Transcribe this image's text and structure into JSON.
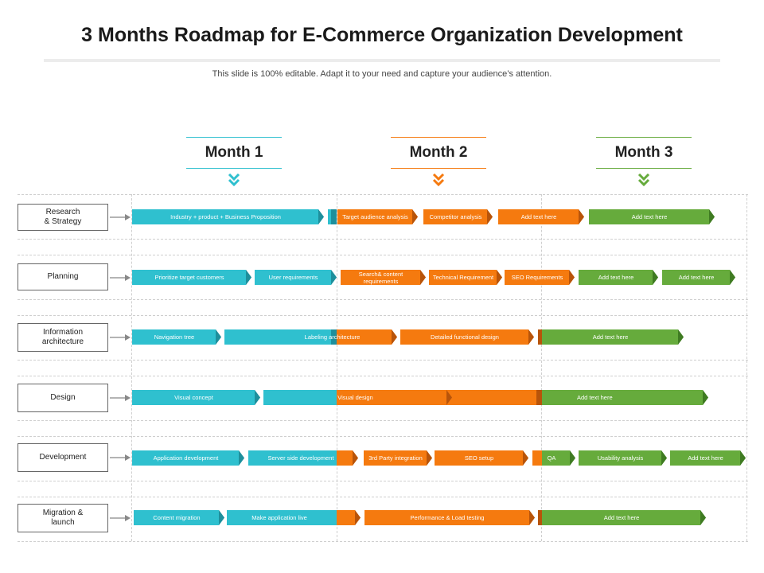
{
  "title": "3 Months Roadmap for E-Commerce Organization Development",
  "subtitle": "This slide is 100% editable. Adapt it to your need and capture your audience’s attention.",
  "months": [
    "Month 1",
    "Month 2",
    "Month 3"
  ],
  "colors": {
    "month1": "#2fc0cf",
    "month2": "#f57a0f",
    "month3": "#66ab3c"
  },
  "rows": [
    {
      "label": "Research\n& Strategy",
      "tasks": [
        "Industry + product + Business Proposition",
        "Target audience analysis",
        "Competitor analysis",
        "Add text here",
        "Add text here"
      ]
    },
    {
      "label": "Planning",
      "tasks": [
        "Prioritize target customers",
        "User requirements",
        "Search& content requirements",
        "Technical Requirement",
        "SEO Requirements",
        "Add text here",
        "Add text here"
      ]
    },
    {
      "label": "Information\narchitecture",
      "tasks": [
        "Navigation tree",
        "Labeling architecture",
        "Detailed functional design",
        "Add text here"
      ]
    },
    {
      "label": "Design",
      "tasks": [
        "Visual concept",
        "Visual design",
        "Add text here"
      ]
    },
    {
      "label": "Development",
      "tasks": [
        "Application development",
        "Server side development",
        "3rd Party integration",
        "SEO setup",
        "QA",
        "Usability analysis",
        "Add text here"
      ]
    },
    {
      "label": "Migration &\nlaunch",
      "tasks": [
        "Content migration",
        "Make application live",
        "Performance & Load testing",
        "Add text here"
      ]
    }
  ]
}
